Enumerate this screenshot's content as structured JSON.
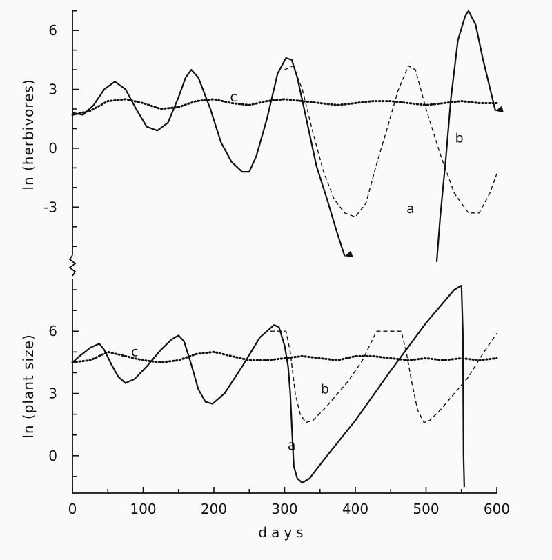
{
  "chart_data": [
    {
      "type": "line",
      "id": "herbivores",
      "ylabel": "ln (herbivores)",
      "xlabel": "days",
      "xlim": [
        0,
        600
      ],
      "ylim": [
        -5.8,
        7.2
      ],
      "yticks": [
        6,
        3,
        0,
        -3
      ],
      "yticklabels": [
        "6",
        "3",
        "0",
        "-3"
      ],
      "series": [
        {
          "name": "a",
          "style": "solid",
          "arrow": true,
          "points": [
            [
              0,
              1.8
            ],
            [
              15,
              1.7
            ],
            [
              30,
              2.2
            ],
            [
              45,
              3.0
            ],
            [
              60,
              3.4
            ],
            [
              75,
              3.0
            ],
            [
              90,
              2.0
            ],
            [
              105,
              1.1
            ],
            [
              120,
              0.9
            ],
            [
              135,
              1.3
            ],
            [
              150,
              2.6
            ],
            [
              160,
              3.6
            ],
            [
              168,
              4.0
            ],
            [
              178,
              3.6
            ],
            [
              195,
              2.0
            ],
            [
              210,
              0.3
            ],
            [
              225,
              -0.7
            ],
            [
              240,
              -1.2
            ],
            [
              250,
              -1.2
            ],
            [
              260,
              -0.4
            ],
            [
              275,
              1.5
            ],
            [
              290,
              3.8
            ],
            [
              302,
              4.6
            ],
            [
              310,
              4.5
            ],
            [
              318,
              3.6
            ],
            [
              330,
              1.6
            ],
            [
              345,
              -0.9
            ],
            [
              360,
              -2.6
            ],
            [
              375,
              -4.4
            ],
            [
              385,
              -5.5
            ]
          ]
        },
        {
          "name": "a",
          "style": "solid",
          "arrow": true,
          "points": [
            [
              515,
              -5.8
            ],
            [
              520,
              -3.5
            ],
            [
              528,
              -0.5
            ],
            [
              535,
              2.5
            ],
            [
              545,
              5.5
            ],
            [
              555,
              6.7
            ],
            [
              560,
              7.0
            ],
            [
              570,
              6.3
            ],
            [
              580,
              4.6
            ],
            [
              590,
              3.1
            ],
            [
              598,
              1.9
            ]
          ]
        },
        {
          "name": "b",
          "style": "dashed",
          "arrow": false,
          "points": [
            [
              300,
              4.0
            ],
            [
              312,
              4.2
            ],
            [
              325,
              3.0
            ],
            [
              340,
              0.8
            ],
            [
              355,
              -1.2
            ],
            [
              370,
              -2.6
            ],
            [
              385,
              -3.3
            ],
            [
              400,
              -3.5
            ],
            [
              415,
              -2.8
            ],
            [
              430,
              -0.8
            ],
            [
              445,
              1.0
            ],
            [
              460,
              2.9
            ],
            [
              475,
              4.2
            ],
            [
              485,
              4.0
            ],
            [
              500,
              2.0
            ],
            [
              520,
              -0.3
            ],
            [
              540,
              -2.3
            ],
            [
              560,
              -3.3
            ],
            [
              575,
              -3.3
            ],
            [
              590,
              -2.3
            ],
            [
              600,
              -1.3
            ]
          ]
        },
        {
          "name": "c",
          "style": "dotted",
          "arrow": false,
          "points": [
            [
              0,
              1.7
            ],
            [
              25,
              1.9
            ],
            [
              50,
              2.4
            ],
            [
              75,
              2.5
            ],
            [
              100,
              2.3
            ],
            [
              125,
              2.0
            ],
            [
              150,
              2.1
            ],
            [
              175,
              2.4
            ],
            [
              200,
              2.5
            ],
            [
              225,
              2.3
            ],
            [
              250,
              2.2
            ],
            [
              275,
              2.4
            ],
            [
              300,
              2.5
            ],
            [
              325,
              2.4
            ],
            [
              350,
              2.3
            ],
            [
              375,
              2.2
            ],
            [
              400,
              2.3
            ],
            [
              425,
              2.4
            ],
            [
              450,
              2.4
            ],
            [
              475,
              2.3
            ],
            [
              500,
              2.2
            ],
            [
              525,
              2.3
            ],
            [
              550,
              2.4
            ],
            [
              575,
              2.3
            ],
            [
              600,
              2.3
            ]
          ]
        }
      ],
      "annotations": [
        {
          "text": "a",
          "x": 478,
          "y": -3.1
        },
        {
          "text": "b",
          "x": 547,
          "y": 0.5
        },
        {
          "text": "c",
          "x": 228,
          "y": 2.6
        }
      ]
    },
    {
      "type": "line",
      "id": "plant_size",
      "ylabel": "ln (plant size)",
      "xlabel": "days",
      "xlim": [
        0,
        600
      ],
      "ylim": [
        -1.8,
        8.5
      ],
      "yticks": [
        6,
        3,
        0
      ],
      "yticklabels": [
        "6",
        "3",
        "0"
      ],
      "xticks": [
        0,
        100,
        200,
        300,
        400,
        500,
        600
      ],
      "xticklabels": [
        "0",
        "100",
        "200",
        "300",
        "400",
        "500",
        "600"
      ],
      "series": [
        {
          "name": "a",
          "style": "solid",
          "arrow": false,
          "points": [
            [
              0,
              4.5
            ],
            [
              10,
              4.8
            ],
            [
              25,
              5.2
            ],
            [
              38,
              5.4
            ],
            [
              45,
              5.1
            ],
            [
              55,
              4.4
            ],
            [
              65,
              3.8
            ],
            [
              75,
              3.5
            ],
            [
              88,
              3.7
            ],
            [
              105,
              4.3
            ],
            [
              125,
              5.1
            ],
            [
              140,
              5.6
            ],
            [
              150,
              5.8
            ],
            [
              158,
              5.5
            ],
            [
              168,
              4.4
            ],
            [
              178,
              3.2
            ],
            [
              188,
              2.6
            ],
            [
              198,
              2.5
            ],
            [
              215,
              3.0
            ],
            [
              240,
              4.3
            ],
            [
              265,
              5.7
            ],
            [
              285,
              6.3
            ],
            [
              292,
              6.2
            ],
            [
              300,
              5.3
            ],
            [
              305,
              4.3
            ],
            [
              308,
              3.0
            ],
            [
              310,
              1.5
            ],
            [
              313,
              -0.5
            ],
            [
              318,
              -1.1
            ],
            [
              325,
              -1.3
            ],
            [
              335,
              -1.1
            ],
            [
              360,
              0.0
            ],
            [
              400,
              1.7
            ],
            [
              450,
              4.1
            ],
            [
              500,
              6.4
            ],
            [
              540,
              8.0
            ],
            [
              550,
              8.2
            ],
            [
              552,
              6.0
            ],
            [
              553,
              0.0
            ],
            [
              554,
              -1.5
            ]
          ]
        },
        {
          "name": "b",
          "style": "dashed",
          "arrow": false,
          "points": [
            [
              280,
              6.0
            ],
            [
              302,
              6.0
            ],
            [
              308,
              5.0
            ],
            [
              315,
              3.0
            ],
            [
              322,
              2.0
            ],
            [
              330,
              1.6
            ],
            [
              340,
              1.7
            ],
            [
              360,
              2.4
            ],
            [
              390,
              3.6
            ],
            [
              410,
              4.6
            ],
            [
              430,
              6.0
            ],
            [
              465,
              6.0
            ],
            [
              472,
              5.0
            ],
            [
              480,
              3.5
            ],
            [
              488,
              2.2
            ],
            [
              497,
              1.6
            ],
            [
              505,
              1.7
            ],
            [
              520,
              2.2
            ],
            [
              540,
              3.0
            ],
            [
              560,
              3.8
            ],
            [
              580,
              4.9
            ],
            [
              600,
              5.9
            ]
          ]
        },
        {
          "name": "c",
          "style": "dotted",
          "arrow": false,
          "points": [
            [
              0,
              4.5
            ],
            [
              25,
              4.6
            ],
            [
              50,
              5.0
            ],
            [
              75,
              4.8
            ],
            [
              100,
              4.6
            ],
            [
              125,
              4.5
            ],
            [
              150,
              4.6
            ],
            [
              175,
              4.9
            ],
            [
              200,
              5.0
            ],
            [
              225,
              4.8
            ],
            [
              250,
              4.6
            ],
            [
              275,
              4.6
            ],
            [
              300,
              4.7
            ],
            [
              325,
              4.8
            ],
            [
              350,
              4.7
            ],
            [
              375,
              4.6
            ],
            [
              400,
              4.8
            ],
            [
              425,
              4.8
            ],
            [
              450,
              4.7
            ],
            [
              475,
              4.6
            ],
            [
              500,
              4.7
            ],
            [
              525,
              4.6
            ],
            [
              550,
              4.7
            ],
            [
              575,
              4.6
            ],
            [
              600,
              4.7
            ]
          ]
        }
      ],
      "annotations": [
        {
          "text": "a",
          "x": 310,
          "y": 0.5
        },
        {
          "text": "b",
          "x": 357,
          "y": 3.2
        },
        {
          "text": "c",
          "x": 88,
          "y": 5.0
        }
      ]
    }
  ]
}
